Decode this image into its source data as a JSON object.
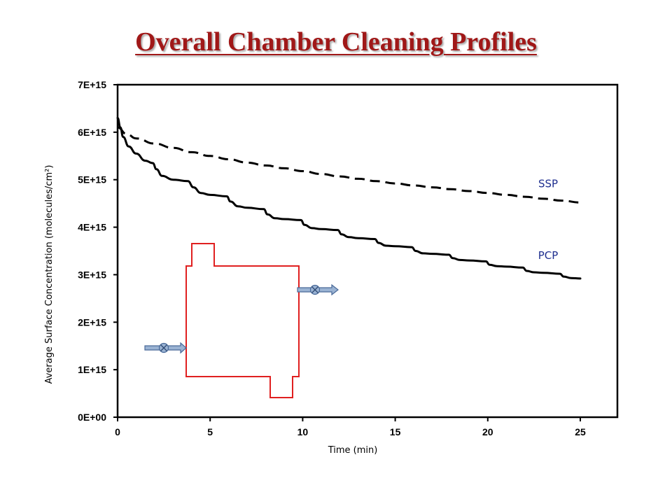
{
  "slide": {
    "title": "Overall Chamber Cleaning Profiles"
  },
  "colors": {
    "title": "#a01818",
    "series_line": "#000000",
    "series_label": "#1f2f8f",
    "chamber_outline": "#e02020",
    "valve_fill": "#9ab3d3",
    "valve_stroke": "#4a6a99"
  },
  "icons": {
    "valves": [
      "inlet-valve-arrow-icon",
      "outlet-valve-arrow-icon"
    ],
    "diagram": "chamber-outline"
  },
  "chart_data": {
    "type": "line",
    "title": "",
    "xlabel": "Time (min)",
    "ylabel": "Average Surface Concentration (molecules/cm²)",
    "xlim": [
      0,
      27
    ],
    "ylim": [
      0,
      7000000000000000.0
    ],
    "xticks": [
      0,
      5,
      10,
      15,
      20,
      25
    ],
    "xtick_labels": [
      "0",
      "5",
      "10",
      "15",
      "20",
      "25"
    ],
    "yticks": [
      0,
      1000000000000000.0,
      2000000000000000.0,
      3000000000000000.0,
      4000000000000000.0,
      5000000000000000.0,
      6000000000000000.0,
      7000000000000000.0
    ],
    "ytick_labels": [
      "0E+00",
      "1E+15",
      "2E+15",
      "3E+15",
      "4E+15",
      "5E+15",
      "6E+15",
      "7E+15"
    ],
    "grid": false,
    "legend": "none",
    "series": [
      {
        "name": "SSP",
        "style": "dashed",
        "x": [
          0,
          0.5,
          1,
          2,
          3,
          4,
          5,
          6,
          7,
          8,
          9,
          10,
          11,
          12,
          13,
          14,
          15,
          16,
          17,
          18,
          19,
          20,
          21,
          22,
          23,
          24,
          25
        ],
        "y": [
          6100000000000000.0,
          5960000000000000.0,
          5870000000000000.0,
          5760000000000000.0,
          5670000000000000.0,
          5580000000000000.0,
          5500000000000000.0,
          5430000000000000.0,
          5360000000000000.0,
          5300000000000000.0,
          5240000000000000.0,
          5180000000000000.0,
          5120000000000000.0,
          5070000000000000.0,
          5020000000000000.0,
          4970000000000000.0,
          4920000000000000.0,
          4880000000000000.0,
          4840000000000000.0,
          4800000000000000.0,
          4760000000000000.0,
          4720000000000000.0,
          4680000000000000.0,
          4640000000000000.0,
          4600000000000000.0,
          4560000000000000.0,
          4520000000000000.0
        ]
      },
      {
        "name": "PCP",
        "style": "solid",
        "x": [
          0,
          0.15,
          0.3,
          0.6,
          1,
          1.5,
          1.9,
          2.1,
          2.4,
          3,
          3.8,
          4.1,
          4.5,
          5,
          5.9,
          6.1,
          6.5,
          7,
          7.9,
          8.1,
          8.5,
          9,
          9.9,
          10.1,
          10.5,
          11,
          11.9,
          12.1,
          12.5,
          13,
          13.9,
          14.1,
          14.5,
          15,
          15.9,
          16.1,
          16.5,
          17,
          17.9,
          18.1,
          18.5,
          19,
          19.9,
          20.1,
          20.5,
          21,
          21.9,
          22.1,
          22.5,
          23,
          23.9,
          24.1,
          24.5,
          25
        ],
        "y": [
          6300000000000000.0,
          6100000000000000.0,
          5900000000000000.0,
          5700000000000000.0,
          5550000000000000.0,
          5400000000000000.0,
          5350000000000000.0,
          5220000000000000.0,
          5080000000000000.0,
          5000000000000000.0,
          4970000000000000.0,
          4840000000000000.0,
          4720000000000000.0,
          4680000000000000.0,
          4650000000000000.0,
          4540000000000000.0,
          4440000000000000.0,
          4410000000000000.0,
          4380000000000000.0,
          4270000000000000.0,
          4190000000000000.0,
          4170000000000000.0,
          4150000000000000.0,
          4050000000000000.0,
          3980000000000000.0,
          3960000000000000.0,
          3940000000000000.0,
          3850000000000000.0,
          3790000000000000.0,
          3770000000000000.0,
          3750000000000000.0,
          3670000000000000.0,
          3610000000000000.0,
          3600000000000000.0,
          3580000000000000.0,
          3500000000000000.0,
          3450000000000000.0,
          3440000000000000.0,
          3420000000000000.0,
          3350000000000000.0,
          3310000000000000.0,
          3300000000000000.0,
          3280000000000000.0,
          3210000000000000.0,
          3180000000000000.0,
          3170000000000000.0,
          3150000000000000.0,
          3080000000000000.0,
          3050000000000000.0,
          3040000000000000.0,
          3020000000000000.0,
          2960000000000000.0,
          2930000000000000.0,
          2920000000000000.0
        ]
      }
    ]
  }
}
